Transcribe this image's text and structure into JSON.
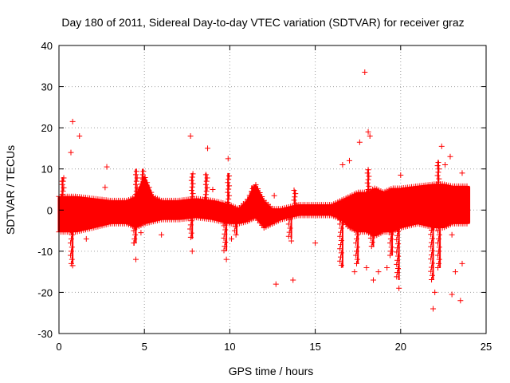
{
  "chart_data": {
    "type": "scatter",
    "title": "Day 180 of 2011, Sidereal Day-to-day VTEC variation (SDTVAR) for receiver graz",
    "xlabel": "GPS time / hours",
    "ylabel": "SDTVAR / TECUs",
    "xlim": [
      0,
      25
    ],
    "ylim": [
      -30,
      40
    ],
    "xticks": [
      0,
      5,
      10,
      15,
      20,
      25
    ],
    "yticks": [
      -30,
      -20,
      -10,
      0,
      10,
      20,
      30,
      40
    ],
    "xtick_labels": [
      "0",
      "5",
      "10",
      "15",
      "20",
      "25"
    ],
    "ytick_labels": [
      "-30",
      "-20",
      "-10",
      "0",
      "10",
      "20",
      "30",
      "40"
    ],
    "grid": true,
    "marker": "+",
    "color": "#ff0000",
    "band_envelope": {
      "x": [
        0,
        1,
        2,
        3,
        4,
        4.5,
        5,
        5.5,
        6,
        7,
        8,
        9,
        10,
        10.5,
        11,
        11.5,
        12,
        12.5,
        13,
        14,
        15,
        16,
        16.5,
        17,
        17.5,
        18,
        18.5,
        19,
        19.5,
        20,
        21,
        22,
        22.5,
        23,
        24
      ],
      "upper": [
        3,
        3,
        2.5,
        2,
        2,
        3,
        8,
        3,
        2,
        2,
        2.5,
        2,
        1,
        0,
        2,
        6,
        2,
        0,
        0,
        1,
        1,
        1,
        2,
        3,
        4,
        4,
        5,
        4,
        5,
        5,
        5.5,
        6,
        6,
        5.5,
        5.5
      ],
      "lower": [
        -5,
        -5,
        -4,
        -3,
        -3,
        -4,
        -3,
        -2.5,
        -2,
        -2,
        -1.5,
        -2,
        -3,
        -3,
        -2.5,
        -1.5,
        -4,
        -3,
        -2,
        -1,
        -1,
        -1,
        -2,
        -4,
        -5,
        -5,
        -6,
        -5,
        -5,
        -4,
        -3,
        -4,
        -4,
        -3,
        -3
      ]
    },
    "dips": [
      {
        "x": 0.8,
        "min": -13
      },
      {
        "x": 4.5,
        "min": -8
      },
      {
        "x": 7.8,
        "min": -7
      },
      {
        "x": 9.8,
        "min": -10
      },
      {
        "x": 10.4,
        "min": -6
      },
      {
        "x": 13.6,
        "min": -7
      },
      {
        "x": 16.6,
        "min": -14
      },
      {
        "x": 17.5,
        "min": -13
      },
      {
        "x": 18.4,
        "min": -9
      },
      {
        "x": 19.5,
        "min": -11
      },
      {
        "x": 19.9,
        "min": -17
      },
      {
        "x": 21.9,
        "min": -17
      },
      {
        "x": 22.3,
        "min": -14
      }
    ],
    "spikes": [
      {
        "x": 0.2,
        "max": 8
      },
      {
        "x": 4.5,
        "max": 10
      },
      {
        "x": 4.9,
        "max": 10
      },
      {
        "x": 7.8,
        "max": 9
      },
      {
        "x": 8.6,
        "max": 9
      },
      {
        "x": 9.9,
        "max": 9
      },
      {
        "x": 11.3,
        "max": 6
      },
      {
        "x": 13.8,
        "max": 5
      },
      {
        "x": 18.1,
        "max": 10
      },
      {
        "x": 22.2,
        "max": 12
      }
    ],
    "outliers": [
      {
        "x": 0.8,
        "y": 21.5
      },
      {
        "x": 0.7,
        "y": 14
      },
      {
        "x": 1.2,
        "y": 18
      },
      {
        "x": 0.2,
        "y": 7
      },
      {
        "x": 0.8,
        "y": -13.5
      },
      {
        "x": 1.6,
        "y": -7
      },
      {
        "x": 2.8,
        "y": 10.5
      },
      {
        "x": 2.7,
        "y": 5.5
      },
      {
        "x": 4.4,
        "y": -8
      },
      {
        "x": 4.5,
        "y": -12
      },
      {
        "x": 4.8,
        "y": -5.5
      },
      {
        "x": 6.0,
        "y": -6
      },
      {
        "x": 7.7,
        "y": 18
      },
      {
        "x": 7.8,
        "y": -10
      },
      {
        "x": 8.7,
        "y": 15
      },
      {
        "x": 9.0,
        "y": 5
      },
      {
        "x": 9.9,
        "y": 12.5
      },
      {
        "x": 9.8,
        "y": -12
      },
      {
        "x": 10.1,
        "y": -7
      },
      {
        "x": 12.7,
        "y": -18
      },
      {
        "x": 13.7,
        "y": -17
      },
      {
        "x": 13.6,
        "y": -7.5
      },
      {
        "x": 12.6,
        "y": 3.5
      },
      {
        "x": 15.0,
        "y": -8
      },
      {
        "x": 16.6,
        "y": 11
      },
      {
        "x": 17.0,
        "y": 12
      },
      {
        "x": 17.3,
        "y": -15
      },
      {
        "x": 17.6,
        "y": 16.5
      },
      {
        "x": 17.9,
        "y": 33.5
      },
      {
        "x": 18.1,
        "y": 19
      },
      {
        "x": 18.2,
        "y": 18
      },
      {
        "x": 18.0,
        "y": -14
      },
      {
        "x": 18.4,
        "y": -17
      },
      {
        "x": 18.7,
        "y": -15
      },
      {
        "x": 19.2,
        "y": -14
      },
      {
        "x": 19.9,
        "y": -19
      },
      {
        "x": 20.0,
        "y": 8.5
      },
      {
        "x": 21.9,
        "y": -24
      },
      {
        "x": 22.0,
        "y": -20
      },
      {
        "x": 22.4,
        "y": 15.5
      },
      {
        "x": 22.6,
        "y": 11
      },
      {
        "x": 22.9,
        "y": 13
      },
      {
        "x": 23.0,
        "y": -20.5
      },
      {
        "x": 23.2,
        "y": -15
      },
      {
        "x": 23.5,
        "y": -22
      },
      {
        "x": 23.6,
        "y": -13
      },
      {
        "x": 23.6,
        "y": 9
      },
      {
        "x": 23.0,
        "y": -6
      }
    ]
  }
}
